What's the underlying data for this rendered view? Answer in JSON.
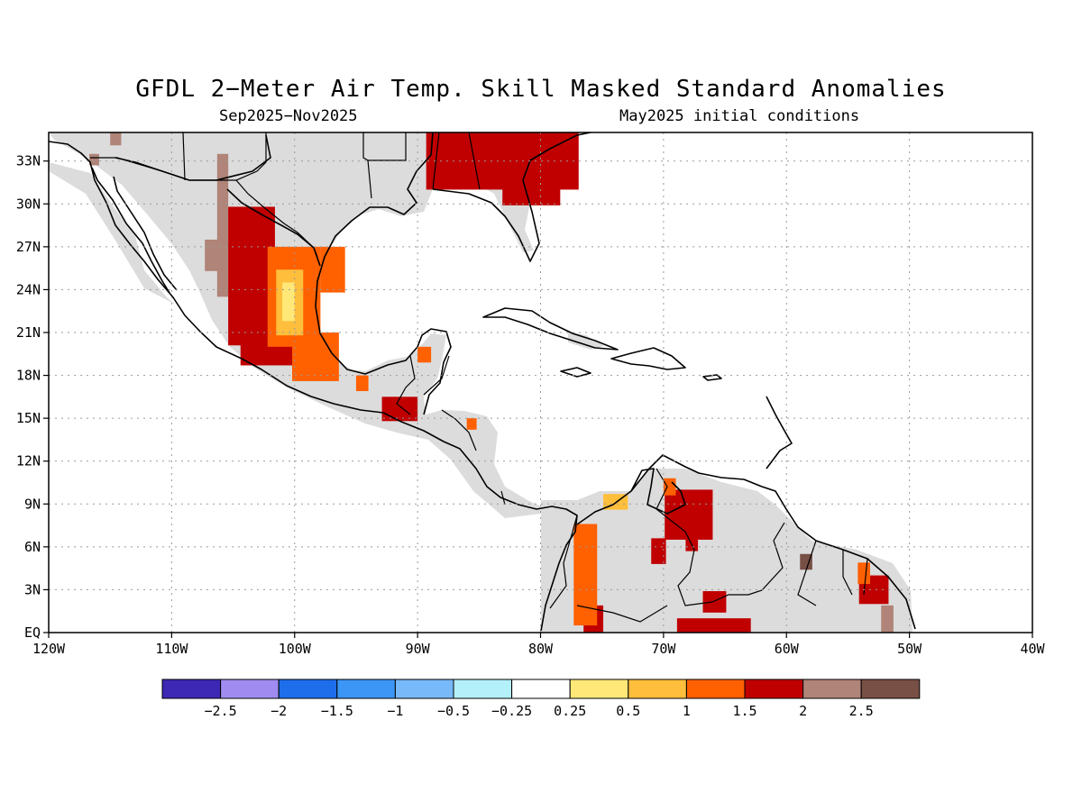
{
  "title": "GFDL 2−Meter Air Temp. Skill Masked Standard Anomalies",
  "subtitle_left": "Sep2025−Nov2025",
  "subtitle_right": "May2025 initial conditions",
  "map": {
    "lon_range": [
      -120,
      -40
    ],
    "lat_range": [
      0,
      35
    ],
    "x_ticks": [
      "120W",
      "110W",
      "100W",
      "90W",
      "80W",
      "70W",
      "60W",
      "50W",
      "40W"
    ],
    "y_ticks": [
      "33N",
      "30N",
      "27N",
      "24N",
      "21N",
      "18N",
      "15N",
      "12N",
      "9N",
      "6N",
      "3N",
      "EQ"
    ],
    "y_tick_values": [
      33,
      30,
      27,
      24,
      21,
      18,
      15,
      12,
      9,
      6,
      3,
      0
    ],
    "masked_color": "#dcdcdc"
  },
  "colorbar": {
    "colors": [
      "#3c28b4",
      "#a08cf0",
      "#1e6eeb",
      "#3c96f5",
      "#78b9fa",
      "#b4f0fa",
      "#ffffff",
      "#ffe878",
      "#ffbe3c",
      "#ff6000",
      "#c00000",
      "#b08478",
      "#785046"
    ],
    "labels": [
      "−2.5",
      "−2",
      "−1.5",
      "−1",
      "−0.5",
      "−0.25",
      "0.25",
      "0.5",
      "1",
      "1.5",
      "2",
      "2.5"
    ]
  },
  "anomaly_patches": [
    {
      "value": 2.5,
      "color": "#785046",
      "lon": [
        -58.9,
        -57.9
      ],
      "lat": [
        4.4,
        5.5
      ]
    },
    {
      "value": 2.0,
      "color": "#b08478",
      "lon": [
        -106.3,
        -105.4
      ],
      "lat": [
        23.5,
        33.5
      ]
    },
    {
      "value": 2.0,
      "color": "#b08478",
      "lon": [
        -107.3,
        -105.9
      ],
      "lat": [
        25.3,
        27.5
      ]
    },
    {
      "value": 2.0,
      "color": "#b08478",
      "lon": [
        -116.7,
        -115.9
      ],
      "lat": [
        32.7,
        33.5
      ]
    },
    {
      "value": 2.0,
      "color": "#b08478",
      "lon": [
        -115.0,
        -114.1
      ],
      "lat": [
        34.1,
        35.0
      ]
    },
    {
      "value": 2.0,
      "color": "#b08478",
      "lon": [
        -52.3,
        -51.3
      ],
      "lat": [
        0.0,
        1.9
      ]
    },
    {
      "value": 1.5,
      "color": "#c00000",
      "lon": [
        -105.4,
        -101.6
      ],
      "lat": [
        20.1,
        29.8
      ]
    },
    {
      "value": 1.5,
      "color": "#c00000",
      "lon": [
        -104.4,
        -100.0
      ],
      "lat": [
        18.7,
        20.6
      ]
    },
    {
      "value": 1.5,
      "color": "#c00000",
      "lon": [
        -92.9,
        -90.0
      ],
      "lat": [
        14.8,
        16.5
      ]
    },
    {
      "value": 1.5,
      "color": "#c00000",
      "lon": [
        -89.3,
        -76.9
      ],
      "lat": [
        31.0,
        35.0
      ]
    },
    {
      "value": 1.5,
      "color": "#c00000",
      "lon": [
        -83.1,
        -78.4
      ],
      "lat": [
        29.9,
        34.0
      ]
    },
    {
      "value": 1.5,
      "color": "#c00000",
      "lon": [
        -69.9,
        -66.0
      ],
      "lat": [
        6.5,
        10.0
      ]
    },
    {
      "value": 1.5,
      "color": "#c00000",
      "lon": [
        -71.0,
        -69.8
      ],
      "lat": [
        4.8,
        6.6
      ]
    },
    {
      "value": 1.5,
      "color": "#c00000",
      "lon": [
        -68.2,
        -67.2
      ],
      "lat": [
        5.7,
        6.6
      ]
    },
    {
      "value": 1.5,
      "color": "#c00000",
      "lon": [
        -66.8,
        -64.9
      ],
      "lat": [
        1.4,
        2.9
      ]
    },
    {
      "value": 1.5,
      "color": "#c00000",
      "lon": [
        -68.9,
        -62.9
      ],
      "lat": [
        0.0,
        1.0
      ]
    },
    {
      "value": 1.5,
      "color": "#c00000",
      "lon": [
        -54.1,
        -51.7
      ],
      "lat": [
        2.0,
        4.0
      ]
    },
    {
      "value": 1.5,
      "color": "#c00000",
      "lon": [
        -76.5,
        -74.9
      ],
      "lat": [
        0.0,
        1.9
      ]
    },
    {
      "value": 1.0,
      "color": "#ff6000",
      "lon": [
        -102.2,
        -97.9
      ],
      "lat": [
        20.0,
        27.0
      ]
    },
    {
      "value": 1.0,
      "color": "#ff6000",
      "lon": [
        -100.2,
        -96.4
      ],
      "lat": [
        17.6,
        21.0
      ]
    },
    {
      "value": 1.0,
      "color": "#ff6000",
      "lon": [
        -97.9,
        -95.9
      ],
      "lat": [
        23.8,
        27.0
      ]
    },
    {
      "value": 1.0,
      "color": "#ff6000",
      "lon": [
        -95.0,
        -94.0
      ],
      "lat": [
        16.9,
        18.0
      ]
    },
    {
      "value": 1.0,
      "color": "#ff6000",
      "lon": [
        -90.0,
        -88.9
      ],
      "lat": [
        18.9,
        20.0
      ]
    },
    {
      "value": 1.0,
      "color": "#ff6000",
      "lon": [
        -86.0,
        -85.2
      ],
      "lat": [
        14.2,
        15.0
      ]
    },
    {
      "value": 1.0,
      "color": "#ff6000",
      "lon": [
        -77.3,
        -75.4
      ],
      "lat": [
        0.5,
        7.6
      ]
    },
    {
      "value": 1.0,
      "color": "#ff6000",
      "lon": [
        -70.0,
        -69.0
      ],
      "lat": [
        9.6,
        10.8
      ]
    },
    {
      "value": 1.0,
      "color": "#ff6000",
      "lon": [
        -54.2,
        -53.2
      ],
      "lat": [
        3.4,
        4.9
      ]
    },
    {
      "value": 0.5,
      "color": "#ffbe3c",
      "lon": [
        -101.5,
        -99.3
      ],
      "lat": [
        20.8,
        25.4
      ]
    },
    {
      "value": 0.5,
      "color": "#ffbe3c",
      "lon": [
        -74.9,
        -72.9
      ],
      "lat": [
        8.6,
        9.7
      ]
    },
    {
      "value": 0.25,
      "color": "#ffe878",
      "lon": [
        -101.0,
        -100.0
      ],
      "lat": [
        21.8,
        24.5
      ]
    }
  ]
}
